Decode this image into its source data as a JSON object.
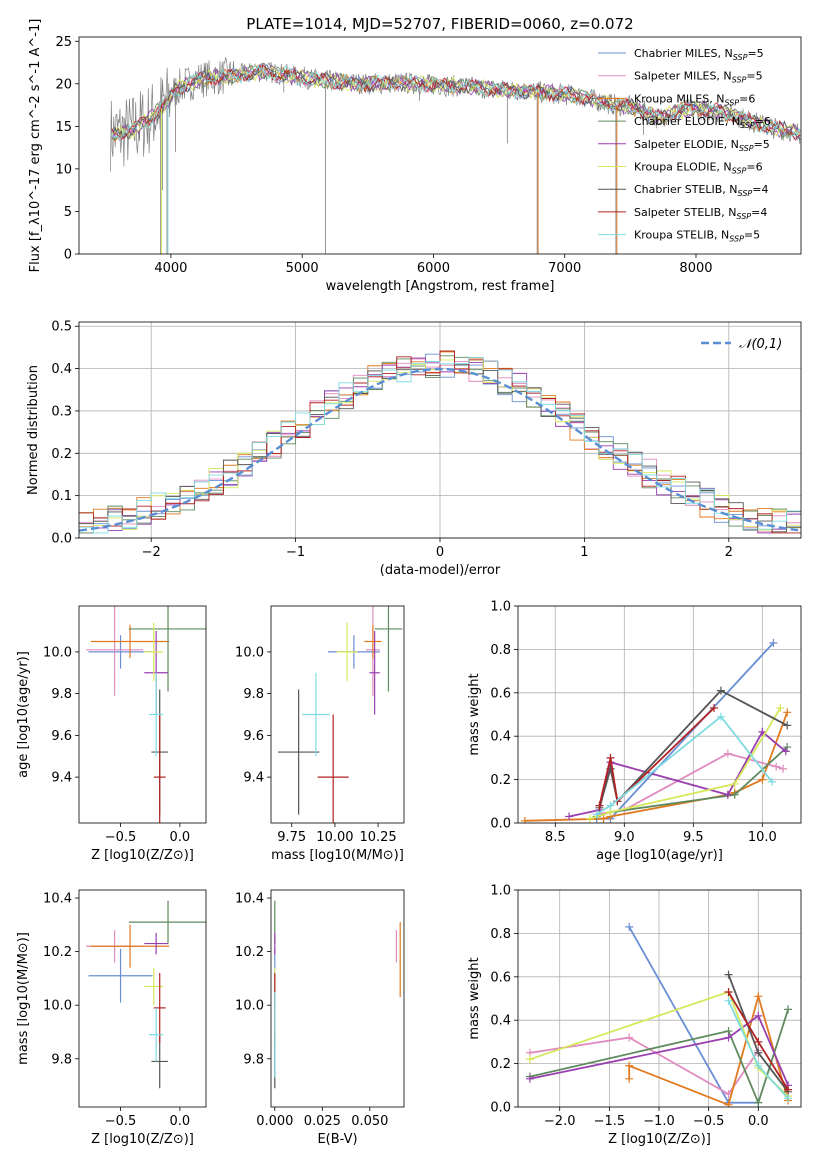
{
  "title": "PLATE=1014, MJD=52707, FIBERID=0060, z=0.072",
  "colors": {
    "chabrier_miles": "#6a8fd6",
    "salpeter_miles": "#e08cbf",
    "kroupa_miles": "#e07a1f",
    "chabrier_elodie": "#5e8a5e",
    "salpeter_elodie": "#9a3fb0",
    "kroupa_elodie": "#d6e85a",
    "chabrier_stelib": "#555555",
    "salpeter_stelib": "#b22222",
    "kroupa_stelib": "#7fdbe0",
    "normal": "#5b8fd4",
    "data": "#808080"
  },
  "legend_series": [
    {
      "label": "Chabrier MILES, N",
      "sub": "SSP",
      "suffix": "=5",
      "color_key": "chabrier_miles"
    },
    {
      "label": "Salpeter MILES, N",
      "sub": "SSP",
      "suffix": "=5",
      "color_key": "salpeter_miles"
    },
    {
      "label": "Kroupa MILES, N",
      "sub": "SSP",
      "suffix": "=6",
      "color_key": "kroupa_miles"
    },
    {
      "label": "Chabrier ELODIE, N",
      "sub": "SSP",
      "suffix": "=6",
      "color_key": "chabrier_elodie"
    },
    {
      "label": "Salpeter ELODIE, N",
      "sub": "SSP",
      "suffix": "=5",
      "color_key": "salpeter_elodie"
    },
    {
      "label": "Kroupa ELODIE, N",
      "sub": "SSP",
      "suffix": "=6",
      "color_key": "kroupa_elodie"
    },
    {
      "label": "Chabrier STELIB, N",
      "sub": "SSP",
      "suffix": "=4",
      "color_key": "chabrier_stelib"
    },
    {
      "label": "Salpeter STELIB, N",
      "sub": "SSP",
      "suffix": "=4",
      "color_key": "salpeter_stelib"
    },
    {
      "label": "Kroupa STELIB, N",
      "sub": "SSP",
      "suffix": "=5",
      "color_key": "kroupa_stelib"
    }
  ],
  "chart_data": [
    {
      "id": "spectrum",
      "type": "line",
      "xlabel": "wavelength [Angstrom, rest frame]",
      "ylabel": "Flux [f_λ10^-17 erg cm^-2 s^-1 A^-1]",
      "xlim": [
        3300,
        8800
      ],
      "ylim": [
        0,
        25.5
      ],
      "xticks": [
        4000,
        5000,
        6000,
        7000,
        8000
      ],
      "yticks": [
        0,
        5,
        10,
        15,
        20,
        25
      ],
      "grid": false,
      "legend": "upper-right",
      "continuum_x": [
        3550,
        3700,
        3850,
        3950,
        4050,
        4200,
        4350,
        4500,
        4700,
        4900,
        5100,
        5300,
        5500,
        5700,
        5900,
        6100,
        6300,
        6500,
        6700,
        6900,
        7100,
        7200,
        7300,
        7400,
        7500,
        7600,
        7700,
        7800,
        7900,
        8000,
        8100,
        8200,
        8300,
        8400,
        8500,
        8600,
        8700,
        8800
      ],
      "continuum_y": [
        14,
        14.5,
        16,
        17.5,
        19.5,
        20.5,
        20.8,
        21,
        21.5,
        21,
        20.5,
        20.2,
        20,
        20.1,
        20,
        19.8,
        19.6,
        19.3,
        19.2,
        18.9,
        18.6,
        18.2,
        17.8,
        17.5,
        17.3,
        16.8,
        16,
        16.5,
        16.9,
        17.1,
        16.9,
        16.7,
        16.3,
        15.7,
        15.2,
        14.8,
        14.5,
        14.2
      ],
      "dips": [
        {
          "x": 3920,
          "y": 0
        },
        {
          "x": 3970,
          "y": 0
        },
        {
          "x": 3935,
          "y": 7.5
        },
        {
          "x": 4035,
          "y": 12
        },
        {
          "x": 4860,
          "y": 19
        },
        {
          "x": 5177,
          "y": 0
        },
        {
          "x": 5893,
          "y": 18
        },
        {
          "x": 6563,
          "y": 13
        },
        {
          "x": 6790,
          "y": 0
        },
        {
          "x": 7390,
          "y": 0
        },
        {
          "x": 7600,
          "y": 14
        }
      ]
    },
    {
      "id": "residual_hist",
      "type": "histogram",
      "xlabel": "(data-model)/error",
      "ylabel": "Normed distribution",
      "xlim": [
        -2.5,
        2.5
      ],
      "ylim": [
        0,
        0.51
      ],
      "xticks": [
        -2,
        -1,
        0,
        1,
        2
      ],
      "yticks": [
        0.0,
        0.1,
        0.2,
        0.3,
        0.4,
        0.5
      ],
      "grid": true,
      "legend": "upper-right",
      "legend_label": "𝒩(0,1)",
      "bin_width": 0.1
    },
    {
      "id": "age_vs_Z",
      "type": "errorbar",
      "xlabel": "Z [log10(Z/Z⊙)]",
      "ylabel": "age  [log10(age/yr)]",
      "xlim": [
        -0.85,
        0.22
      ],
      "ylim": [
        9.18,
        10.22
      ],
      "xticks": [
        -0.5,
        0.0
      ],
      "yticks": [
        9.4,
        9.6,
        9.8,
        10.0
      ],
      "points": [
        {
          "c": "chabrier_miles",
          "x": -0.5,
          "xe": 0.27,
          "y": 10.0,
          "ye": 0.08
        },
        {
          "c": "salpeter_miles",
          "x": -0.55,
          "xe": 0.24,
          "y": 10.01,
          "ye": 0.22
        },
        {
          "c": "kroupa_miles",
          "x": -0.42,
          "xe": 0.33,
          "y": 10.05,
          "ye": 0.08
        },
        {
          "c": "chabrier_elodie",
          "x": -0.1,
          "xe": 0.33,
          "y": 10.11,
          "ye": 0.3
        },
        {
          "c": "salpeter_elodie",
          "x": -0.2,
          "xe": 0.1,
          "y": 9.9,
          "ye": 0.2
        },
        {
          "c": "kroupa_elodie",
          "x": -0.22,
          "xe": 0.08,
          "y": 10.0,
          "ye": 0.14
        },
        {
          "c": "chabrier_stelib",
          "x": -0.17,
          "xe": 0.07,
          "y": 9.52,
          "ye": 0.3
        },
        {
          "c": "salpeter_stelib",
          "x": -0.17,
          "xe": 0.05,
          "y": 9.4,
          "ye": 0.3
        },
        {
          "c": "kroupa_stelib",
          "x": -0.2,
          "xe": 0.06,
          "y": 9.7,
          "ye": 0.2
        }
      ]
    },
    {
      "id": "age_vs_mass",
      "type": "errorbar",
      "xlabel": "mass [log10(M/M⊙)]",
      "ylabel": "",
      "xlim": [
        9.63,
        10.4
      ],
      "ylim": [
        9.18,
        10.22
      ],
      "xticks": [
        9.75,
        10.0,
        10.25
      ],
      "xticklabels": [
        "9.75",
        "10.00",
        "10.25"
      ],
      "yticks": [
        9.4,
        9.6,
        9.8,
        10.0
      ],
      "points": [
        {
          "c": "chabrier_miles",
          "x": 10.11,
          "xe": 0.15,
          "y": 10.0,
          "ye": 0.08
        },
        {
          "c": "salpeter_miles",
          "x": 10.22,
          "xe": 0.04,
          "y": 10.01,
          "ye": 0.22
        },
        {
          "c": "kroupa_miles",
          "x": 10.22,
          "xe": 0.05,
          "y": 10.05,
          "ye": 0.08
        },
        {
          "c": "chabrier_elodie",
          "x": 10.31,
          "xe": 0.08,
          "y": 10.11,
          "ye": 0.3
        },
        {
          "c": "salpeter_elodie",
          "x": 10.23,
          "xe": 0.03,
          "y": 9.9,
          "ye": 0.2
        },
        {
          "c": "kroupa_elodie",
          "x": 10.07,
          "xe": 0.06,
          "y": 10.0,
          "ye": 0.14
        },
        {
          "c": "chabrier_stelib",
          "x": 9.79,
          "xe": 0.12,
          "y": 9.52,
          "ye": 0.3
        },
        {
          "c": "salpeter_stelib",
          "x": 9.99,
          "xe": 0.09,
          "y": 9.4,
          "ye": 0.3
        },
        {
          "c": "kroupa_stelib",
          "x": 9.89,
          "xe": 0.08,
          "y": 9.7,
          "ye": 0.2
        }
      ]
    },
    {
      "id": "massweight_vs_age",
      "type": "line",
      "xlabel": "age  [log10(age/yr)]",
      "ylabel": "mass weight",
      "xlim": [
        8.23,
        10.28
      ],
      "ylim": [
        0,
        1.0
      ],
      "xticks": [
        8.5,
        9.0,
        9.5,
        10.0
      ],
      "yticks": [
        0.0,
        0.2,
        0.4,
        0.6,
        0.8,
        1.0
      ],
      "grid": true,
      "series": [
        {
          "c": "chabrier_miles",
          "x": [
            8.8,
            8.9,
            10.08
          ],
          "y": [
            0.02,
            0.02,
            0.83
          ]
        },
        {
          "c": "salpeter_miles",
          "x": [
            8.8,
            9.0,
            9.75,
            10.1,
            10.15
          ],
          "y": [
            0.04,
            0.06,
            0.32,
            0.26,
            0.25
          ]
        },
        {
          "c": "kroupa_miles",
          "x": [
            8.28,
            8.85,
            8.9,
            9.75,
            9.8,
            10.0,
            10.18
          ],
          "y": [
            0.01,
            0.02,
            0.03,
            0.13,
            0.14,
            0.2,
            0.51
          ]
        },
        {
          "c": "chabrier_elodie",
          "x": [
            8.8,
            8.9,
            9.8,
            10.18
          ],
          "y": [
            0.03,
            0.05,
            0.13,
            0.35
          ]
        },
        {
          "c": "salpeter_elodie",
          "x": [
            8.6,
            8.82,
            8.9,
            9.75,
            10.0,
            10.17
          ],
          "y": [
            0.03,
            0.06,
            0.28,
            0.13,
            0.42,
            0.33
          ]
        },
        {
          "c": "kroupa_elodie",
          "x": [
            8.75,
            8.9,
            9.8,
            10.13
          ],
          "y": [
            0.02,
            0.05,
            0.18,
            0.53
          ]
        },
        {
          "c": "chabrier_stelib",
          "x": [
            8.82,
            8.9,
            8.95,
            9.7,
            10.18
          ],
          "y": [
            0.07,
            0.25,
            0.1,
            0.61,
            0.45
          ]
        },
        {
          "c": "salpeter_stelib",
          "x": [
            8.82,
            8.9,
            8.95,
            9.65
          ],
          "y": [
            0.08,
            0.3,
            0.1,
            0.53
          ]
        },
        {
          "c": "kroupa_stelib",
          "x": [
            8.8,
            8.9,
            9.7,
            10.07
          ],
          "y": [
            0.04,
            0.08,
            0.49,
            0.19
          ]
        }
      ]
    },
    {
      "id": "mass_vs_Z",
      "type": "errorbar",
      "xlabel": "Z [log10(Z/Z⊙)]",
      "ylabel": "mass [log10(M/M⊙)]",
      "xlim": [
        -0.85,
        0.22
      ],
      "ylim": [
        9.62,
        10.43
      ],
      "xticks": [
        -0.5,
        0.0
      ],
      "yticks": [
        9.8,
        10.0,
        10.2,
        10.4
      ],
      "points": [
        {
          "c": "chabrier_miles",
          "x": -0.5,
          "xe": 0.27,
          "y": 10.11,
          "ye": 0.1
        },
        {
          "c": "salpeter_miles",
          "x": -0.55,
          "xe": 0.24,
          "y": 10.22,
          "ye": 0.06
        },
        {
          "c": "kroupa_miles",
          "x": -0.42,
          "xe": 0.33,
          "y": 10.22,
          "ye": 0.08
        },
        {
          "c": "chabrier_elodie",
          "x": -0.1,
          "xe": 0.33,
          "y": 10.31,
          "ye": 0.08
        },
        {
          "c": "salpeter_elodie",
          "x": -0.2,
          "xe": 0.1,
          "y": 10.23,
          "ye": 0.04
        },
        {
          "c": "kroupa_elodie",
          "x": -0.22,
          "xe": 0.08,
          "y": 10.07,
          "ye": 0.07
        },
        {
          "c": "chabrier_stelib",
          "x": -0.17,
          "xe": 0.07,
          "y": 9.79,
          "ye": 0.1
        },
        {
          "c": "salpeter_stelib",
          "x": -0.17,
          "xe": 0.05,
          "y": 9.99,
          "ye": 0.13
        },
        {
          "c": "kroupa_stelib",
          "x": -0.2,
          "xe": 0.06,
          "y": 9.89,
          "ye": 0.1
        }
      ]
    },
    {
      "id": "mass_vs_ebv",
      "type": "errorbar",
      "xlabel": "E(B-V)",
      "ylabel": "",
      "xlim": [
        -0.002,
        0.068
      ],
      "ylim": [
        9.62,
        10.43
      ],
      "xticks": [
        0.0,
        0.025,
        0.05
      ],
      "xticklabels": [
        "0.000",
        "0.025",
        "0.050"
      ],
      "yticks": [
        9.8,
        10.0,
        10.2,
        10.4
      ],
      "points": [
        {
          "c": "chabrier_miles",
          "x": 0.0,
          "xe": 0,
          "y": 10.11,
          "ye": 0.1
        },
        {
          "c": "salpeter_miles",
          "x": 0.064,
          "xe": 0,
          "y": 10.22,
          "ye": 0.06
        },
        {
          "c": "kroupa_miles",
          "x": 0.066,
          "xe": 0,
          "y": 10.17,
          "ye": 0.14
        },
        {
          "c": "chabrier_elodie",
          "x": 0.0,
          "xe": 0,
          "y": 10.31,
          "ye": 0.08
        },
        {
          "c": "salpeter_elodie",
          "x": 0.0,
          "xe": 0,
          "y": 10.23,
          "ye": 0.04
        },
        {
          "c": "kroupa_elodie",
          "x": 0.0,
          "xe": 0,
          "y": 10.07,
          "ye": 0.07
        },
        {
          "c": "chabrier_stelib",
          "x": 0.0,
          "xe": 0,
          "y": 9.79,
          "ye": 0.1
        },
        {
          "c": "salpeter_stelib",
          "x": 0.0,
          "xe": 0,
          "y": 9.99,
          "ye": 0.13
        },
        {
          "c": "kroupa_stelib",
          "x": 0.0,
          "xe": 0,
          "y": 9.89,
          "ye": 0.16
        }
      ]
    },
    {
      "id": "massweight_vs_Z",
      "type": "line",
      "xlabel": "Z [log10(Z/Z⊙)]",
      "ylabel": "mass weight",
      "xlim": [
        -2.42,
        0.43
      ],
      "ylim": [
        0,
        1.0
      ],
      "xticks": [
        -2.0,
        -1.5,
        -1.0,
        -0.5,
        0.0
      ],
      "yticks": [
        0.0,
        0.2,
        0.4,
        0.6,
        0.8,
        1.0
      ],
      "grid": true,
      "series": [
        {
          "c": "chabrier_miles",
          "x": [
            -1.3,
            -0.3,
            0.0
          ],
          "y": [
            0.83,
            0.02,
            0.02
          ]
        },
        {
          "c": "salpeter_miles",
          "x": [
            -2.3,
            -1.3,
            -0.3,
            0.0
          ],
          "y": [
            0.25,
            0.32,
            0.06,
            0.26
          ]
        },
        {
          "c": "kroupa_miles",
          "x": [
            -1.3,
            -1.3,
            -0.3,
            0.0,
            0.3
          ],
          "y": [
            0.13,
            0.19,
            0.01,
            0.51,
            0.03
          ]
        },
        {
          "c": "chabrier_elodie",
          "x": [
            -2.3,
            -0.3,
            0.0,
            0.3
          ],
          "y": [
            0.14,
            0.35,
            0.02,
            0.45
          ]
        },
        {
          "c": "salpeter_elodie",
          "x": [
            -2.3,
            -0.3,
            0.0,
            0.3
          ],
          "y": [
            0.13,
            0.32,
            0.42,
            0.1
          ]
        },
        {
          "c": "kroupa_elodie",
          "x": [
            -2.3,
            -0.3,
            0.0,
            0.3
          ],
          "y": [
            0.22,
            0.53,
            0.18,
            0.05
          ]
        },
        {
          "c": "chabrier_stelib",
          "x": [
            -0.3,
            0.0,
            0.3
          ],
          "y": [
            0.61,
            0.25,
            0.07
          ]
        },
        {
          "c": "salpeter_stelib",
          "x": [
            -0.3,
            0.0,
            0.3
          ],
          "y": [
            0.53,
            0.3,
            0.08
          ]
        },
        {
          "c": "kroupa_stelib",
          "x": [
            -0.3,
            0.0,
            0.3
          ],
          "y": [
            0.49,
            0.19,
            0.04
          ]
        }
      ]
    }
  ]
}
